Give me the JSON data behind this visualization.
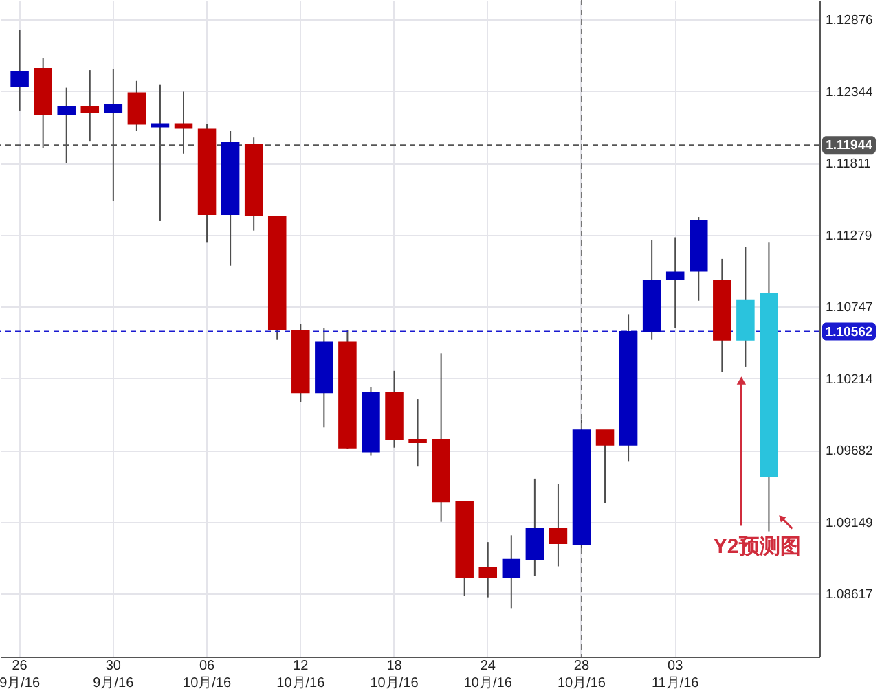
{
  "chart_data": {
    "type": "candlestick",
    "categories": [
      "26 9月/16",
      null,
      null,
      null,
      "30 9月/16",
      null,
      null,
      null,
      "06 10月/16",
      null,
      null,
      null,
      "12 10月/16",
      null,
      null,
      null,
      "18 10月/16",
      null,
      null,
      null,
      "24 10月/16",
      null,
      null,
      null,
      "28 10月/16",
      null,
      null,
      null,
      "03 11月/16",
      null,
      null,
      null,
      null
    ],
    "ylim": [
      1.0815,
      1.1302
    ],
    "yticks": [
      1.08617,
      1.09149,
      1.09682,
      1.10214,
      1.10747,
      1.11279,
      1.11811,
      1.12344,
      1.12876
    ],
    "grid": true,
    "series": [
      {
        "ohlc": [
          [
            1.1238,
            1.128,
            1.122,
            1.1249
          ],
          [
            1.1251,
            1.1259,
            1.1192,
            1.1217
          ],
          [
            1.1217,
            1.1237,
            1.1181,
            1.1223
          ],
          [
            1.1223,
            1.125,
            1.1197,
            1.1219
          ],
          [
            1.1219,
            1.1251,
            1.1153,
            1.1224
          ],
          [
            1.1233,
            1.1242,
            1.1205,
            1.121
          ],
          [
            1.1208,
            1.1239,
            1.1138,
            1.121
          ],
          [
            1.121,
            1.1234,
            1.1188,
            1.1207
          ],
          [
            1.1206,
            1.121,
            1.1122,
            1.1143
          ],
          [
            1.1143,
            1.1205,
            1.1105,
            1.1196
          ],
          [
            1.1195,
            1.12,
            1.1131,
            1.1142
          ],
          [
            1.1141,
            1.1141,
            1.105,
            1.1058
          ],
          [
            1.1057,
            1.1062,
            1.1004,
            1.1011
          ],
          [
            1.1011,
            1.1059,
            1.0985,
            1.1048
          ],
          [
            1.1048,
            1.1057,
            1.0969,
            1.097
          ],
          [
            1.0967,
            1.1015,
            1.0964,
            1.1011
          ],
          [
            1.1011,
            1.1027,
            1.097,
            1.0976
          ],
          [
            1.0976,
            1.1006,
            1.0956,
            1.0974
          ],
          [
            1.0976,
            1.104,
            1.0915,
            1.093
          ],
          [
            1.093,
            1.093,
            1.086,
            1.0874
          ],
          [
            1.0881,
            1.09,
            1.0859,
            1.0874
          ],
          [
            1.0874,
            1.0905,
            1.0851,
            1.0887
          ],
          [
            1.0887,
            1.0947,
            1.0875,
            1.091
          ],
          [
            1.091,
            1.0943,
            1.0882,
            1.0899
          ],
          [
            1.0898,
            1.0991,
            1.0894,
            1.0983
          ],
          [
            1.0983,
            1.0983,
            1.0929,
            1.0972
          ],
          [
            1.0972,
            1.1069,
            1.096,
            1.1056
          ],
          [
            1.1056,
            1.1124,
            1.105,
            1.1094
          ],
          [
            1.1095,
            1.1126,
            1.1059,
            1.11
          ],
          [
            1.1101,
            1.1141,
            1.1079,
            1.1138
          ],
          [
            1.1094,
            1.111,
            1.1026,
            1.105
          ],
          null,
          null
        ],
        "colors": [
          "#0000bf",
          "#c00000",
          "#0000bf",
          "#c00000",
          "#0000bf",
          "#c00000",
          "#0000bf",
          "#c00000",
          "#c00000",
          "#0000bf",
          "#c00000",
          "#c00000",
          "#c00000",
          "#0000bf",
          "#c00000",
          "#0000bf",
          "#c00000",
          "#c00000",
          "#c00000",
          "#c00000",
          "#c00000",
          "#0000bf",
          "#0000bf",
          "#c00000",
          "#0000bf",
          "#c00000",
          "#0000bf",
          "#0000bf",
          "#0000bf",
          "#0000bf",
          "#c00000",
          null,
          null
        ]
      },
      {
        "color": "#2ac3dd",
        "ohlc": [
          null,
          null,
          null,
          null,
          null,
          null,
          null,
          null,
          null,
          null,
          null,
          null,
          null,
          null,
          null,
          null,
          null,
          null,
          null,
          null,
          null,
          null,
          null,
          null,
          null,
          null,
          null,
          null,
          null,
          null,
          null,
          [
            1.1079,
            1.1119,
            1.103,
            1.105
          ],
          [
            1.1084,
            1.1122,
            1.0908,
            1.0949
          ]
        ]
      }
    ],
    "annotations": [
      "Y2预测图"
    ],
    "ref_lines": [
      {
        "axis": "y",
        "value": 1.11944,
        "label": "1.11944",
        "color": "#555555",
        "line_style": "dashed"
      },
      {
        "axis": "y",
        "value": 1.10562,
        "label": "1.10562",
        "color": "#1a1ad0",
        "line_style": "dashed"
      },
      {
        "axis": "x",
        "value": "28 10月/16",
        "line_style": "dashed"
      }
    ]
  }
}
